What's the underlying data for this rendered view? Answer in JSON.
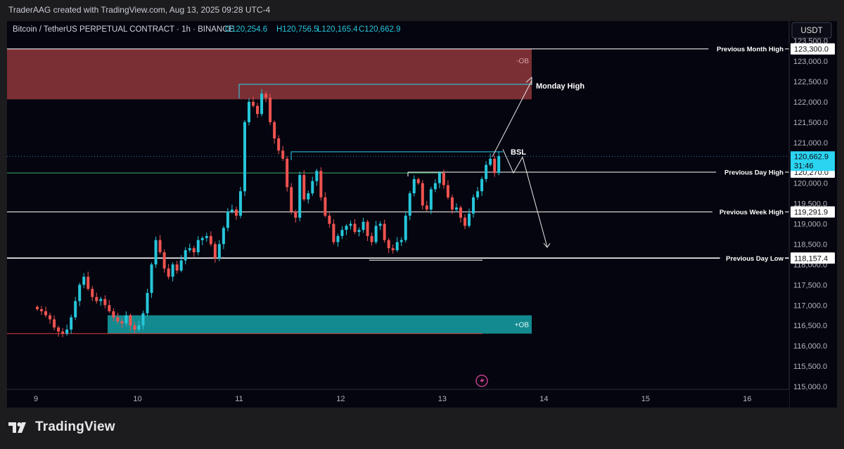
{
  "header": {
    "credit": "TraderAAG created with TradingView.com, Aug 13, 2025 09:28 UTC-4"
  },
  "legend": {
    "symbol": "Bitcoin / TetherUS PERPETUAL CONTRACT · 1h · BINANCE",
    "open": "O120,254.6",
    "high": "H120,756.5",
    "low": "L120,165.4",
    "close": "C120,662.9"
  },
  "currency_button": "USDT",
  "footer": {
    "brand": "TradingView"
  },
  "colors": {
    "up": "#26c6da",
    "down": "#ef5350",
    "bearish_ob": "#7a2f34",
    "bullish_ob": "#138a8f",
    "background": "#05050f",
    "price_badge": "#2bd4f0"
  },
  "chart_data": {
    "type": "candlestick",
    "ylim": [
      115000,
      123300
    ],
    "x_ticks": [
      {
        "label": "9",
        "t": 0
      },
      {
        "label": "10",
        "t": 24
      },
      {
        "label": "11",
        "t": 48
      },
      {
        "label": "12",
        "t": 72
      },
      {
        "label": "13",
        "t": 96
      },
      {
        "label": "14",
        "t": 120
      },
      {
        "label": "15",
        "t": 144
      },
      {
        "label": "16",
        "t": 168
      }
    ],
    "y_ticks": [
      "123,500.0",
      "123,000.0",
      "122,500.0",
      "122,000.0",
      "121,500.0",
      "121,000.0",
      "120,500.0",
      "120,000.0",
      "119,500.0",
      "119,000.0",
      "118,500.0",
      "118,000.0",
      "117,500.0",
      "117,000.0",
      "116,500.0",
      "116,000.0",
      "115,500.0",
      "115,000.0"
    ],
    "y_tick_values": [
      123500,
      123000,
      122500,
      122000,
      121500,
      121000,
      120500,
      120000,
      119500,
      119000,
      118500,
      118000,
      117500,
      117000,
      116500,
      116000,
      115500,
      115000
    ],
    "closes": [
      116900,
      116850,
      116750,
      116650,
      116450,
      116350,
      116300,
      116400,
      116700,
      117100,
      117500,
      117700,
      117400,
      117200,
      117100,
      117150,
      117000,
      116850,
      116700,
      116600,
      116550,
      116750,
      116500,
      116400,
      116500,
      116800,
      117300,
      118000,
      118600,
      118300,
      117900,
      117700,
      118000,
      117850,
      118100,
      118350,
      118400,
      118300,
      118600,
      118650,
      118700,
      118500,
      118150,
      118500,
      118900,
      119300,
      119350,
      119200,
      119800,
      121500,
      122000,
      121900,
      121700,
      122200,
      122100,
      121500,
      121100,
      120800,
      120600,
      119900,
      119300,
      119150,
      120200,
      119600,
      119750,
      120050,
      120300,
      119650,
      119200,
      119000,
      118550,
      118700,
      118850,
      118950,
      119000,
      118800,
      118850,
      119050,
      118700,
      118550,
      118950,
      119000,
      118600,
      118400,
      118350,
      118550,
      118600,
      119200,
      119750,
      120100,
      120000,
      119450,
      119350,
      119850,
      120000,
      120250,
      119950,
      119650,
      119350,
      119400,
      119150,
      118950,
      119250,
      119650,
      119800,
      120100,
      120450,
      120600,
      120250,
      120662
    ]
  },
  "annotations": {
    "bearish_ob_label": "-OB",
    "bullish_ob_label": "+OB",
    "monday_high": "Monday High",
    "bsl": "BSL",
    "prev_month_high": "Previous Month High",
    "prev_day_high": "Previous Day High",
    "prev_week_high": "Previous Week High",
    "prev_day_low": "Previous Day Low"
  },
  "levels": {
    "prev_month_high": 123300,
    "bearish_ob": [
      122060,
      123300
    ],
    "monday_high": 122430,
    "bsl": 120770,
    "prev_day_high": 120270,
    "prev_week_high": 119291.9,
    "prev_day_low": 118157.4,
    "bullish_ob": [
      116300,
      116750
    ],
    "green_line": 120250,
    "red_line": 116300
  },
  "price_labels": {
    "prev_month_high": "123,300.0",
    "current_price": "120,662.9",
    "countdown": "31:46",
    "prev_day_high": "120,270.0",
    "prev_week_high": "119,291.9",
    "prev_day_low": "118,157.4"
  }
}
